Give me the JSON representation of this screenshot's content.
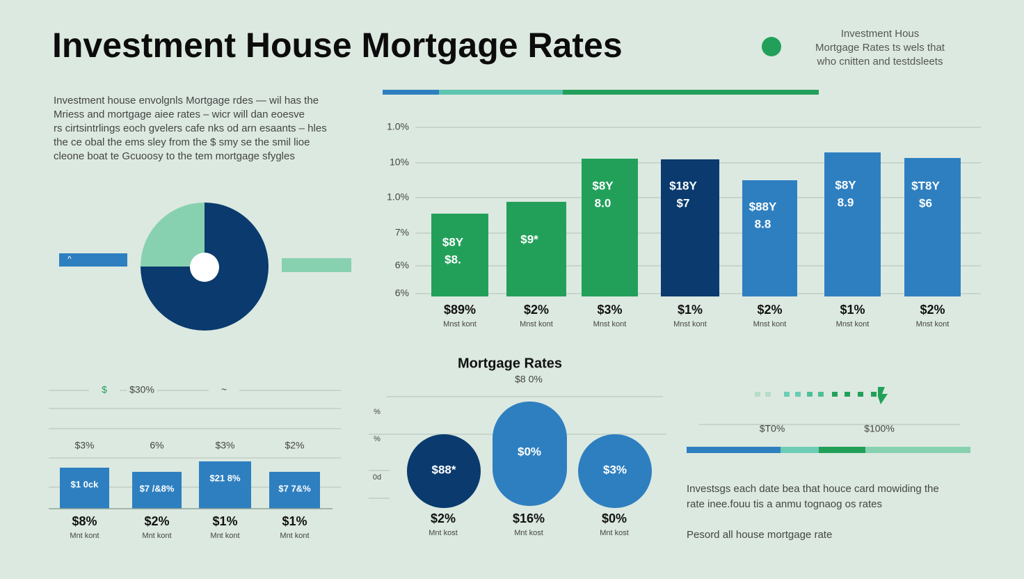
{
  "header": {
    "title": "Investment House Mortgage Rates",
    "note": [
      "Investment Hous",
      "Mortgage Rates ts wels that",
      "who cnitten and testdsleets"
    ]
  },
  "intro": [
    "Investment house envolgnls Mortgage rdes — wil has the",
    "Mriess and mortgage aiee rates – wicr will dan eoesve",
    "rs cirtsintrlings eoch gvelers cafe nks od arn esaants – hles",
    "the ce obal the ems sley from the $ smy se the smil lioe",
    "cleone boat te Gcuoosy to the tem mortgage sfygles"
  ],
  "bar_chart": {
    "y_labels": [
      "1.0%",
      "10%",
      "1.0%",
      "7%",
      "6%",
      "6%"
    ],
    "bars": [
      {
        "labels": [
          "$8Y",
          "$8."
        ],
        "value": "$89%",
        "caption": "Mnst kont"
      },
      {
        "labels": [
          "$9*"
        ],
        "value": "$2%",
        "caption": "Mnst kont"
      },
      {
        "labels": [
          "$8Y",
          "8.0"
        ],
        "value": "$3%",
        "caption": "Mnst kont"
      },
      {
        "labels": [
          "$18Y",
          "$7"
        ],
        "value": "$1%",
        "caption": "Mnst kont"
      },
      {
        "labels": [
          "$88Y",
          "8.8"
        ],
        "value": "$2%",
        "caption": "Mnst kont"
      },
      {
        "labels": [
          "$8Y",
          "8.9"
        ],
        "value": "$1%",
        "caption": "Mnst kont"
      },
      {
        "labels": [
          "$T8Y",
          "$6"
        ],
        "value": "$2%",
        "caption": "Mnst kont"
      }
    ]
  },
  "small_bars": {
    "top_labels": [
      "$",
      "$30%",
      "~"
    ],
    "bars": [
      {
        "top": "$3%",
        "inner": "$1 0ck",
        "value": "$8%",
        "caption": "Mnt kont"
      },
      {
        "top": "6%",
        "inner": "$7 /&8%",
        "value": "$2%",
        "caption": "Mnt kont"
      },
      {
        "top": "$3%",
        "inner": "$21 8%",
        "value": "$1%",
        "caption": "Mnt kont"
      },
      {
        "top": "$2%",
        "inner": "$7 7&%",
        "value": "$1%",
        "caption": "Mnt kont"
      }
    ]
  },
  "bubbles": {
    "title": "Mortgage Rates",
    "subtitle": "$8 0%",
    "axis": [
      "%",
      "%",
      "0d"
    ],
    "items": [
      {
        "inner": "$88*",
        "value": "$2%",
        "caption": "Mnt kost"
      },
      {
        "inner": "$0%",
        "value": "$16%",
        "caption": "Mnt kost"
      },
      {
        "inner": "$3%",
        "value": "$0%",
        "caption": "Mnt kost"
      }
    ]
  },
  "scale": {
    "labels": [
      "$T0%",
      "$100%"
    ]
  },
  "footer": {
    "paragraph": [
      "Investsgs each date bea that houce card mowiding the",
      "rate inee.fouu tis a anmu tognaog os rates"
    ],
    "note": "Pesord all house mortgage rate"
  }
}
